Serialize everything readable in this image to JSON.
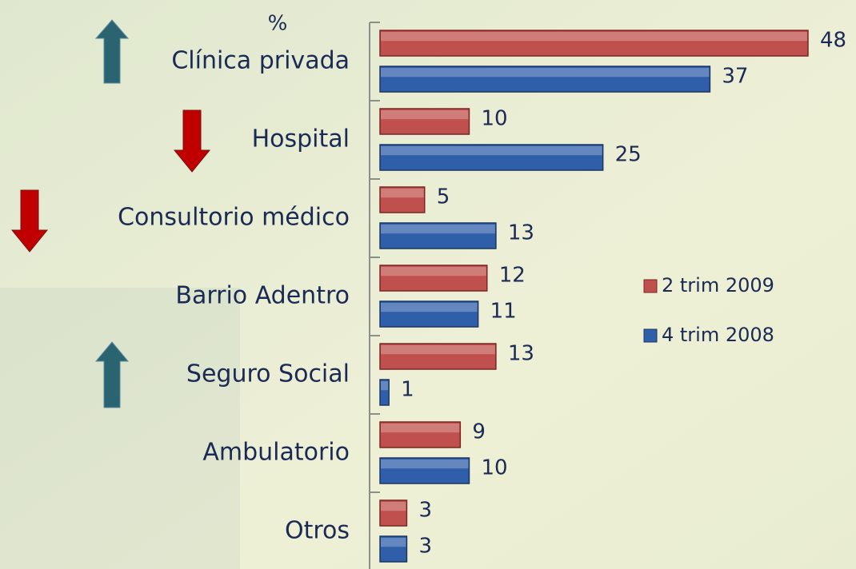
{
  "chart_data": {
    "type": "bar",
    "orientation": "horizontal",
    "axis_label": "%",
    "categories": [
      "Clínica privada",
      "Hospital",
      "Consultorio médico",
      "Barrio Adentro",
      "Seguro Social",
      "Ambulatorio",
      "Otros"
    ],
    "series": [
      {
        "name": "2 trim 2009",
        "color": "#c0504d",
        "values": [
          48,
          10,
          5,
          12,
          13,
          9,
          3
        ]
      },
      {
        "name": "4 trim 2008",
        "color": "#2f5fa8",
        "values": [
          37,
          25,
          13,
          11,
          1,
          10,
          3
        ]
      }
    ],
    "legend": "right"
  }
}
